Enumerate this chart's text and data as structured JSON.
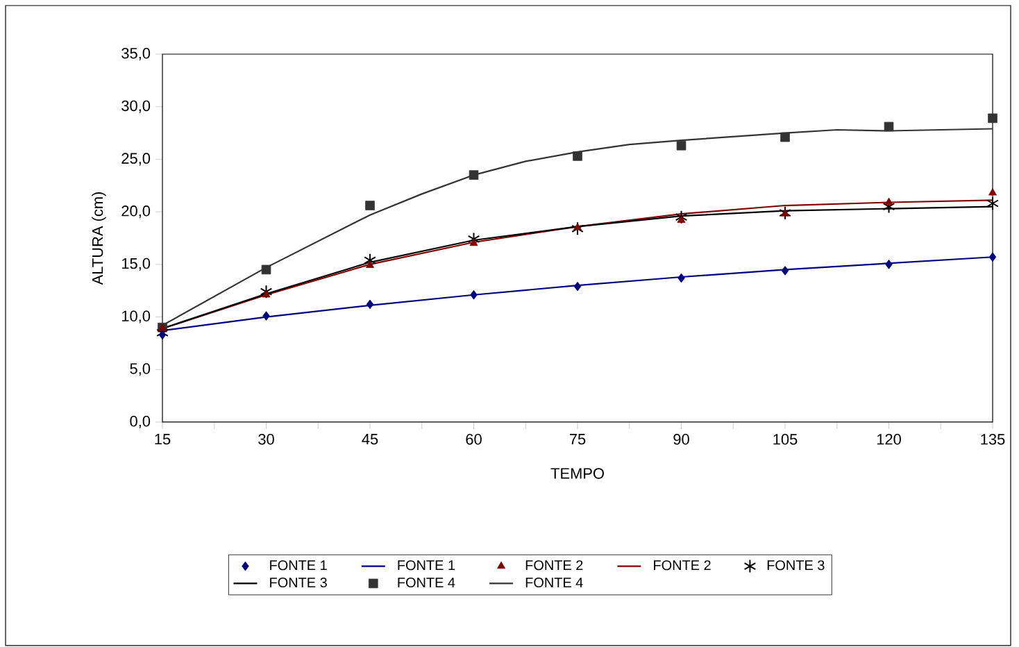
{
  "chart_data": {
    "type": "scatter",
    "xlabel": "TEMPO",
    "ylabel": "ALTURA (cm)",
    "x": [
      15,
      30,
      45,
      60,
      75,
      90,
      105,
      120,
      135
    ],
    "xlim": [
      15,
      135
    ],
    "ylim": [
      0,
      35
    ],
    "xticks": [
      15,
      {
        "value": 22.5,
        "label": null
      },
      30,
      {
        "value": 37.5,
        "label": null
      },
      45,
      {
        "value": 52.5,
        "label": null
      },
      60,
      {
        "value": 67.5,
        "label": null
      },
      75,
      {
        "value": 82.5,
        "label": null
      },
      90,
      {
        "value": 97.5,
        "label": null
      },
      105,
      {
        "value": 112.5,
        "label": null
      },
      120,
      {
        "value": 127.5,
        "label": null
      },
      135
    ],
    "yticks": [
      {
        "value": 0,
        "label": "0,0"
      },
      {
        "value": 5,
        "label": "5,0"
      },
      {
        "value": 10,
        "label": "10,0"
      },
      {
        "value": 15,
        "label": "15,0"
      },
      {
        "value": 20,
        "label": "20,0"
      },
      {
        "value": 25,
        "label": "25,0"
      },
      {
        "value": 30,
        "label": "30,0"
      },
      {
        "value": 35,
        "label": "35,0"
      }
    ],
    "grid": false,
    "legend": "bottom",
    "series": [
      {
        "name": "FONTE 1",
        "marker": "diamond",
        "color": "#000080",
        "values": [
          8.3,
          10.1,
          11.2,
          12.1,
          12.9,
          13.7,
          14.4,
          15.0,
          15.7
        ]
      },
      {
        "name": "FONTE 1",
        "type": "line",
        "marker": "none",
        "line_style": "solid",
        "color": "#000080",
        "x": [
          15,
          30,
          45,
          60,
          75,
          90,
          105,
          120,
          135
        ],
        "values": [
          8.7,
          10.0,
          11.1,
          12.1,
          13.0,
          13.8,
          14.5,
          15.1,
          15.7
        ]
      },
      {
        "name": "FONTE 2",
        "marker": "triangle",
        "color": "#800000",
        "values": [
          8.9,
          12.1,
          14.9,
          17.0,
          18.5,
          19.2,
          19.8,
          20.9,
          21.8
        ]
      },
      {
        "name": "FONTE 2",
        "type": "line",
        "marker": "none",
        "line_style": "solid",
        "color": "#800000",
        "x": [
          15,
          30,
          45,
          60,
          75,
          90,
          105,
          120,
          135
        ],
        "values": [
          8.9,
          12.1,
          15.0,
          17.1,
          18.6,
          19.8,
          20.6,
          20.9,
          21.1
        ]
      },
      {
        "name": "FONTE 3",
        "marker": "cross",
        "color": "#000000",
        "values": [
          8.5,
          12.4,
          15.4,
          17.4,
          18.4,
          19.5,
          19.9,
          20.5,
          20.8
        ]
      },
      {
        "name": "FONTE 3",
        "type": "line",
        "marker": "none",
        "line_style": "solid",
        "color": "#000000",
        "x": [
          15,
          30,
          45,
          60,
          75,
          90,
          105,
          120,
          135
        ],
        "values": [
          8.9,
          12.2,
          15.2,
          17.3,
          18.6,
          19.6,
          20.1,
          20.3,
          20.5
        ]
      },
      {
        "name": "FONTE 4",
        "marker": "square",
        "color": "#333333",
        "values": [
          9.0,
          14.5,
          20.6,
          23.5,
          25.3,
          26.3,
          27.1,
          28.1,
          28.9
        ]
      },
      {
        "name": "FONTE 4",
        "type": "line",
        "marker": "none",
        "line_style": "solid",
        "color": "#333333",
        "x": [
          15,
          30,
          45,
          52.5,
          60,
          67.5,
          75,
          82.5,
          90,
          105,
          112.5,
          120,
          135
        ],
        "values": [
          9.2,
          14.7,
          19.7,
          21.7,
          23.5,
          24.8,
          25.7,
          26.4,
          26.8,
          27.5,
          27.8,
          27.7,
          27.9
        ]
      }
    ]
  }
}
